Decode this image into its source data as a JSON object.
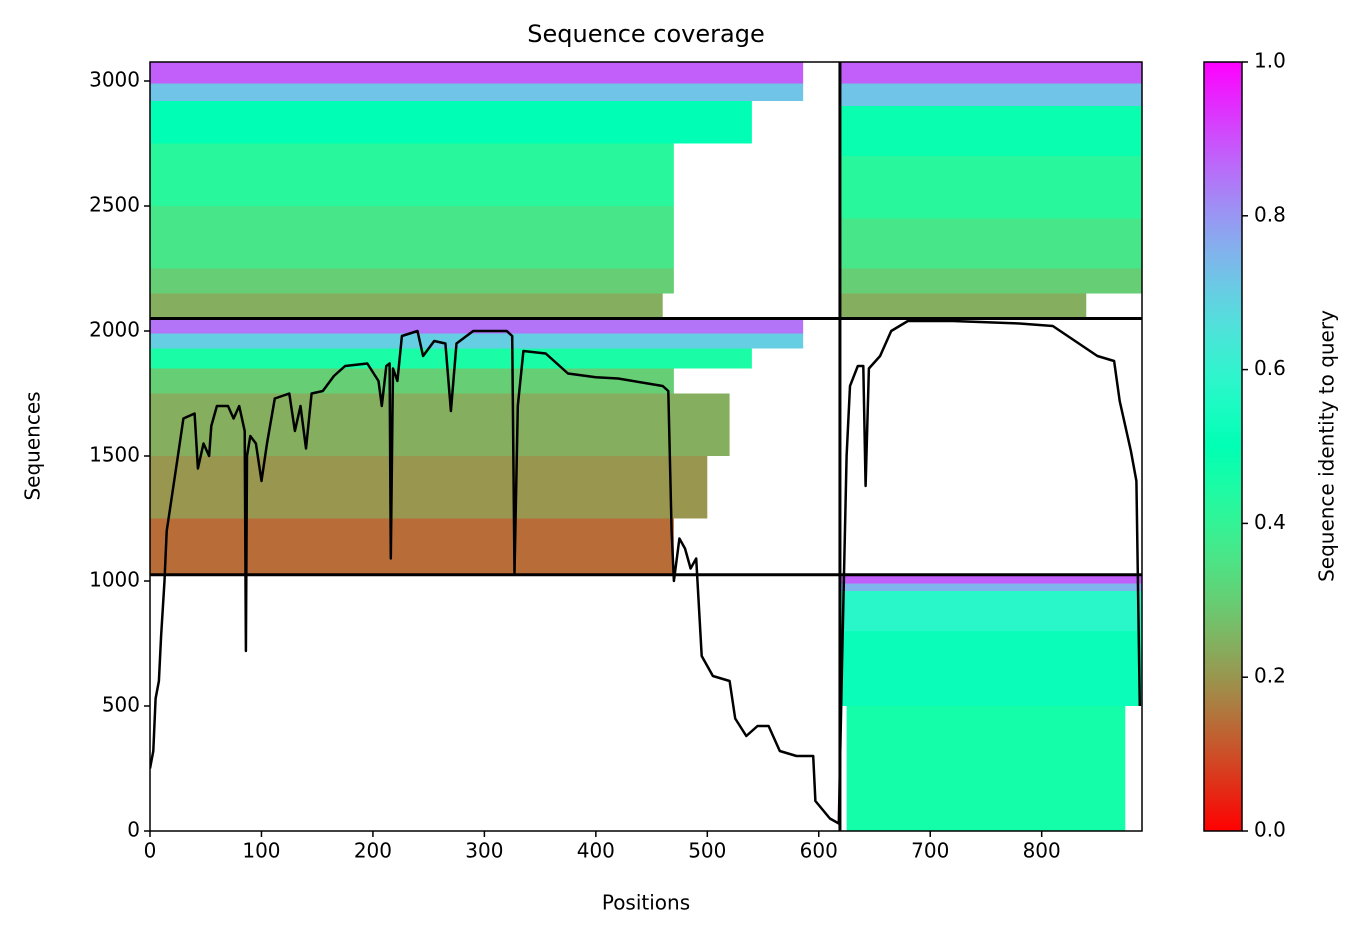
{
  "chart_data": {
    "type": "heatmap-line",
    "title": "Sequence coverage",
    "xlabel": "Positions",
    "ylabel": "Sequences",
    "xlim": [
      0,
      890
    ],
    "ylim": [
      0,
      3076
    ],
    "xticks": [
      0,
      100,
      200,
      300,
      400,
      500,
      600,
      700,
      800
    ],
    "yticks": [
      0,
      500,
      1000,
      1500,
      2000,
      2500,
      3000
    ],
    "dividers": {
      "x": [
        619
      ],
      "y": [
        2050,
        1025
      ]
    },
    "heatmap": [
      {
        "x": [
          0,
          586
        ],
        "y": [
          2990,
          3076
        ],
        "value": 0.88
      },
      {
        "x": [
          0,
          586
        ],
        "y": [
          2920,
          2990
        ],
        "value": 0.72
      },
      {
        "x": [
          0,
          540
        ],
        "y": [
          2750,
          2920
        ],
        "value": 0.5
      },
      {
        "x": [
          0,
          470
        ],
        "y": [
          2500,
          2750
        ],
        "value": 0.42
      },
      {
        "x": [
          0,
          470
        ],
        "y": [
          2250,
          2500
        ],
        "value": 0.36
      },
      {
        "x": [
          0,
          470
        ],
        "y": [
          2150,
          2250
        ],
        "value": 0.3
      },
      {
        "x": [
          0,
          460
        ],
        "y": [
          2050,
          2150
        ],
        "value": 0.24
      },
      {
        "x": [
          619,
          890
        ],
        "y": [
          2990,
          3076
        ],
        "value": 0.88
      },
      {
        "x": [
          619,
          890
        ],
        "y": [
          2900,
          2990
        ],
        "value": 0.72
      },
      {
        "x": [
          619,
          890
        ],
        "y": [
          2700,
          2900
        ],
        "value": 0.48
      },
      {
        "x": [
          619,
          890
        ],
        "y": [
          2450,
          2700
        ],
        "value": 0.42
      },
      {
        "x": [
          619,
          890
        ],
        "y": [
          2250,
          2450
        ],
        "value": 0.36
      },
      {
        "x": [
          619,
          890
        ],
        "y": [
          2150,
          2250
        ],
        "value": 0.3
      },
      {
        "x": [
          619,
          840
        ],
        "y": [
          2050,
          2150
        ],
        "value": 0.24
      },
      {
        "x": [
          0,
          586
        ],
        "y": [
          1990,
          2050
        ],
        "value": 0.85
      },
      {
        "x": [
          0,
          586
        ],
        "y": [
          1930,
          1990
        ],
        "value": 0.7
      },
      {
        "x": [
          0,
          540
        ],
        "y": [
          1850,
          1930
        ],
        "value": 0.45
      },
      {
        "x": [
          0,
          470
        ],
        "y": [
          1750,
          1850
        ],
        "value": 0.3
      },
      {
        "x": [
          0,
          520
        ],
        "y": [
          1500,
          1750
        ],
        "value": 0.24
      },
      {
        "x": [
          0,
          500
        ],
        "y": [
          1250,
          1500
        ],
        "value": 0.2
      },
      {
        "x": [
          0,
          470
        ],
        "y": [
          1025,
          1250
        ],
        "value": 0.14
      },
      {
        "x": [
          619,
          890
        ],
        "y": [
          990,
          1025
        ],
        "value": 0.88
      },
      {
        "x": [
          619,
          890
        ],
        "y": [
          960,
          990
        ],
        "value": 0.75
      },
      {
        "x": [
          619,
          890
        ],
        "y": [
          800,
          960
        ],
        "value": 0.58
      },
      {
        "x": [
          619,
          890
        ],
        "y": [
          500,
          800
        ],
        "value": 0.52
      },
      {
        "x": [
          625,
          875
        ],
        "y": [
          0,
          500
        ],
        "value": 0.46
      }
    ],
    "coverage": {
      "x": [
        0,
        3,
        5,
        8,
        10,
        13,
        15,
        20,
        25,
        30,
        40,
        43,
        48,
        53,
        55,
        60,
        70,
        75,
        80,
        85,
        86,
        87,
        90,
        95,
        100,
        105,
        112,
        125,
        130,
        135,
        140,
        145,
        155,
        165,
        175,
        195,
        205,
        208,
        212,
        215,
        216,
        218,
        222,
        226,
        240,
        245,
        255,
        265,
        270,
        275,
        290,
        320,
        325,
        327,
        330,
        335,
        355,
        375,
        400,
        420,
        460,
        465,
        468,
        470,
        475,
        480,
        485,
        490,
        495,
        505,
        520,
        525,
        535,
        545,
        555,
        565,
        580,
        595,
        597,
        610,
        618,
        621,
        625,
        628,
        635,
        640,
        642,
        645,
        655,
        665,
        680,
        720,
        780,
        810,
        830,
        850,
        865,
        870,
        880,
        885,
        888
      ],
      "values": [
        250,
        320,
        530,
        600,
        780,
        1000,
        1200,
        1350,
        1500,
        1650,
        1670,
        1450,
        1550,
        1500,
        1620,
        1700,
        1700,
        1650,
        1700,
        1600,
        720,
        1500,
        1580,
        1550,
        1400,
        1550,
        1730,
        1750,
        1600,
        1700,
        1530,
        1750,
        1760,
        1820,
        1860,
        1870,
        1800,
        1700,
        1860,
        1870,
        1090,
        1850,
        1800,
        1980,
        2000,
        1900,
        1960,
        1950,
        1680,
        1950,
        2000,
        2000,
        1980,
        1030,
        1700,
        1920,
        1910,
        1830,
        1815,
        1810,
        1780,
        1760,
        1200,
        1000,
        1170,
        1130,
        1050,
        1090,
        700,
        620,
        600,
        450,
        380,
        420,
        420,
        320,
        300,
        300,
        120,
        50,
        30,
        700,
        1500,
        1780,
        1860,
        1860,
        1380,
        1850,
        1900,
        2000,
        2040,
        2040,
        2030,
        2020,
        1960,
        1900,
        1880,
        1720,
        1520,
        1400,
        500
      ]
    },
    "colorbar": {
      "label": "Sequence identity to query",
      "lim": [
        0,
        1
      ],
      "ticks": [
        {
          "value": 0,
          "label": "0.0"
        },
        {
          "value": 0.2,
          "label": "0.2"
        },
        {
          "value": 0.4,
          "label": "0.4"
        },
        {
          "value": 0.6,
          "label": "0.6"
        },
        {
          "value": 0.8,
          "label": "0.8"
        },
        {
          "value": 1,
          "label": "1.0"
        }
      ]
    }
  }
}
